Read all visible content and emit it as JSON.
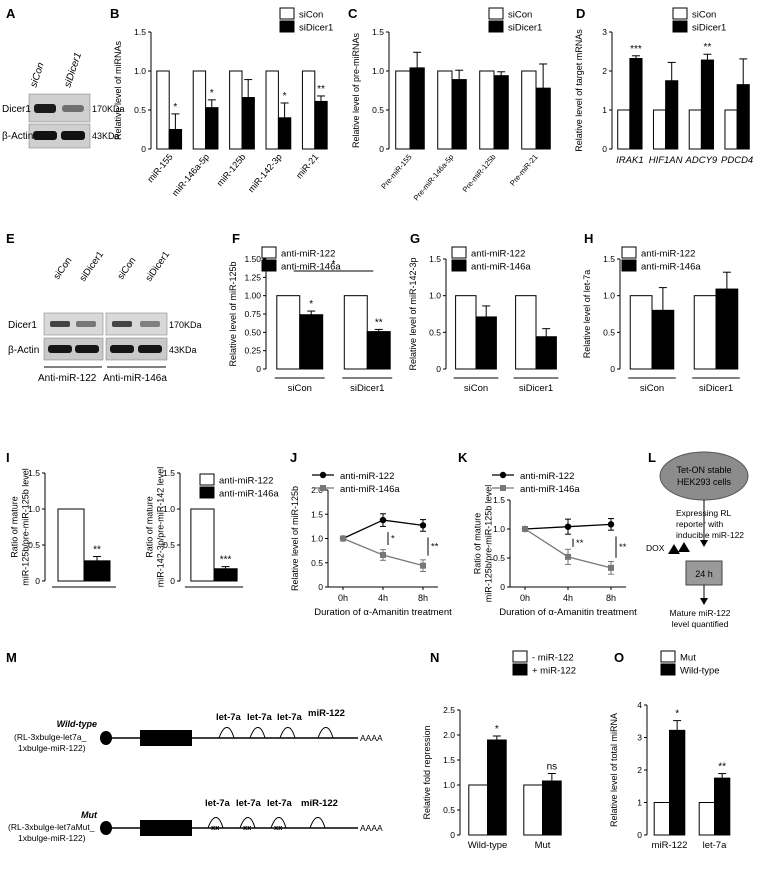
{
  "figure": {
    "panels": {
      "A": {
        "letter": "A",
        "lanes": [
          "siCon",
          "siDicer1"
        ],
        "rows": [
          "Dicer1",
          "β-Actin"
        ],
        "markers": [
          "170KDa",
          "43KDa"
        ]
      },
      "E": {
        "letter": "E",
        "lanes": [
          "siCon",
          "siDicer1",
          "siCon",
          "siDicer1"
        ],
        "rows": [
          "Dicer1",
          "β-Actin"
        ],
        "markers": [
          "170KDa",
          "43KDa"
        ],
        "groups": [
          "Anti-miR-122",
          "Anti-miR-146a"
        ]
      },
      "L": {
        "letter": "L",
        "cells": "Tet-ON stable",
        "cells_line2": "HEK293 cells",
        "step1": "Expressing RL",
        "step1b": "reporter with",
        "step1c": "inducible miR-122",
        "dox": "DOX",
        "time": "24 h",
        "result": "Mature miR-122",
        "result2": "level quantified"
      },
      "M": {
        "letter": "M",
        "wt_name": "Wild-type",
        "wt_sub1": "(RL-3xbulge-let7a_",
        "wt_sub2": "1xbulge-miR-122)",
        "mut_name": "Mut",
        "mut_sub1": "(RL-3xbulge-let7aMut_",
        "mut_sub2": "1xbulge-miR-122)",
        "site_let7a": "let-7a",
        "site_mir122": "miR-122",
        "mut_mark": "xx",
        "polya": "AAAA"
      }
    }
  },
  "chart_data": [
    {
      "panel": "B",
      "type": "bar",
      "ylabel": "Relative level of miRNAs",
      "ylim": [
        0,
        1.5
      ],
      "yticks": [
        "0",
        "0.5",
        "1.0",
        "1.5"
      ],
      "categories": [
        "miR-155",
        "miR-146a-5p",
        "miR-125b",
        "miR-142-3p",
        "miR-21"
      ],
      "series": [
        {
          "name": "siCon",
          "values": [
            1,
            1,
            1,
            1,
            1
          ],
          "errors": [
            0,
            0,
            0,
            0,
            0
          ]
        },
        {
          "name": "siDicer1",
          "values": [
            0.25,
            0.53,
            0.66,
            0.4,
            0.61
          ],
          "errors": [
            0.2,
            0.1,
            0.23,
            0.19,
            0.07
          ]
        }
      ],
      "annotations": [
        "*",
        "*",
        "",
        "*",
        "**"
      ],
      "legend": "top"
    },
    {
      "panel": "C",
      "type": "bar",
      "ylabel": "Relative level of pre-miRNAs",
      "ylim": [
        0,
        1.5
      ],
      "yticks": [
        "0",
        "0.5",
        "1.0",
        "1.5"
      ],
      "categories": [
        "Pre-miR-155",
        "Pre-miR-146a-5p",
        "Pre-miR-125b",
        "Pre-miR-21"
      ],
      "series": [
        {
          "name": "siCon",
          "values": [
            1,
            1,
            1,
            1
          ],
          "errors": [
            0,
            0,
            0,
            0
          ]
        },
        {
          "name": "siDicer1",
          "values": [
            1.04,
            0.89,
            0.94,
            0.78
          ],
          "errors": [
            0.2,
            0.12,
            0.05,
            0.31
          ]
        }
      ],
      "annotations": [
        "",
        "",
        "",
        ""
      ],
      "legend": "top"
    },
    {
      "panel": "D",
      "type": "bar",
      "ylabel": "Relative level of target mRNAs",
      "ylim": [
        0,
        3
      ],
      "yticks": [
        "0",
        "1",
        "2",
        "3"
      ],
      "categories": [
        "IRAK1",
        "HIF1AN",
        "ADCY9",
        "PDCD4"
      ],
      "series": [
        {
          "name": "siCon",
          "values": [
            1,
            1,
            1,
            1
          ],
          "errors": [
            0,
            0,
            0,
            0
          ]
        },
        {
          "name": "siDicer1",
          "values": [
            2.32,
            1.75,
            2.28,
            1.65
          ],
          "errors": [
            0.07,
            0.47,
            0.15,
            0.66
          ]
        }
      ],
      "annotations": [
        "***",
        "",
        "**",
        ""
      ],
      "legend": "top"
    },
    {
      "panel": "F",
      "type": "bar",
      "ylabel": "Relative level of miR-125b",
      "ylim": [
        0,
        1.5
      ],
      "yticks": [
        "0",
        "0.25",
        "0.50",
        "0.75",
        "1.00",
        "1.25",
        "1.50"
      ],
      "categories": [
        "siCon",
        "siDicer1"
      ],
      "series": [
        {
          "name": "anti-miR-122",
          "values": [
            1,
            1
          ],
          "errors": [
            0,
            0
          ]
        },
        {
          "name": "anti-miR-146a",
          "values": [
            0.74,
            0.51
          ],
          "errors": [
            0.05,
            0.03
          ]
        }
      ],
      "annotations": [
        "*",
        "**"
      ],
      "bracket": "*",
      "legend": "top"
    },
    {
      "panel": "G",
      "type": "bar",
      "ylabel": "Relative level of miR-142-3p",
      "ylim": [
        0,
        1.5
      ],
      "yticks": [
        "0",
        "0.5",
        "1.0",
        "1.5"
      ],
      "categories": [
        "siCon",
        "siDicer1"
      ],
      "series": [
        {
          "name": "anti-miR-122",
          "values": [
            1,
            1
          ],
          "errors": [
            0,
            0
          ]
        },
        {
          "name": "anti-miR-146a",
          "values": [
            0.71,
            0.44
          ],
          "errors": [
            0.15,
            0.11
          ]
        }
      ],
      "annotations": [
        "",
        ""
      ],
      "legend": "top"
    },
    {
      "panel": "H",
      "type": "bar",
      "ylabel": "Relative level of let-7a",
      "ylim": [
        0,
        1.5
      ],
      "yticks": [
        "0",
        "0.5",
        "1.0",
        "1.5"
      ],
      "categories": [
        "siCon",
        "siDicer1"
      ],
      "series": [
        {
          "name": "anti-miR-122",
          "values": [
            1,
            1
          ],
          "errors": [
            0,
            0
          ]
        },
        {
          "name": "anti-miR-146a",
          "values": [
            0.8,
            1.09
          ],
          "errors": [
            0.31,
            0.23
          ]
        }
      ],
      "annotations": [
        "",
        ""
      ],
      "legend": "top"
    },
    {
      "panel": "I1",
      "type": "bar",
      "ylabel": "Ratio of mature\nmiR-125b/pre-miR-125b level",
      "ylim": [
        0,
        1.5
      ],
      "yticks": [
        "0",
        "0.5",
        "1.0",
        "1.5"
      ],
      "categories": [
        ""
      ],
      "series": [
        {
          "name": "anti-miR-122",
          "values": [
            1
          ],
          "errors": [
            0
          ]
        },
        {
          "name": "anti-miR-146a",
          "values": [
            0.28
          ],
          "errors": [
            0.06
          ]
        }
      ],
      "annotations": [
        "**"
      ]
    },
    {
      "panel": "I2",
      "type": "bar",
      "ylabel": "Ratio of mature\nmiR-142-3p/pre-miR-142 level",
      "ylim": [
        0,
        1.5
      ],
      "yticks": [
        "0",
        "0.5",
        "1.0",
        "1.5"
      ],
      "categories": [
        ""
      ],
      "series": [
        {
          "name": "anti-miR-122",
          "values": [
            1
          ],
          "errors": [
            0
          ]
        },
        {
          "name": "anti-miR-146a",
          "values": [
            0.17
          ],
          "errors": [
            0.03
          ]
        }
      ],
      "annotations": [
        "***"
      ],
      "legend": "right"
    },
    {
      "panel": "J",
      "type": "line",
      "ylabel": "Relative level of miR-125b",
      "xlabel": "Duration of α-Amanitin treatment",
      "x": [
        "0h",
        "4h",
        "8h"
      ],
      "ylim": [
        0,
        2
      ],
      "yticks": [
        "0",
        "0.5",
        "1.0",
        "1.5",
        "2.0"
      ],
      "series": [
        {
          "name": "anti-miR-122",
          "values": [
            1.0,
            1.38,
            1.27
          ],
          "errors": [
            0,
            0.13,
            0.12
          ]
        },
        {
          "name": "anti-miR-146a",
          "values": [
            1.0,
            0.66,
            0.44
          ],
          "errors": [
            0,
            0.11,
            0.12
          ]
        }
      ],
      "annotations": [
        "*",
        "**"
      ],
      "legend": "top"
    },
    {
      "panel": "K",
      "type": "line",
      "ylabel": "Ratio of mature\nmiR-125b/pre-miR-125b level",
      "xlabel": "Duration of α-Amanitin treatment",
      "x": [
        "0h",
        "4h",
        "8h"
      ],
      "ylim": [
        0,
        1.5
      ],
      "yticks": [
        "0",
        "0.5",
        "1.0",
        "1.5"
      ],
      "series": [
        {
          "name": "anti-miR-122",
          "values": [
            1.0,
            1.04,
            1.08
          ],
          "errors": [
            0,
            0.13,
            0.1
          ]
        },
        {
          "name": "anti-miR-146a",
          "values": [
            1.0,
            0.52,
            0.33
          ],
          "errors": [
            0,
            0.13,
            0.11
          ]
        }
      ],
      "annotations": [
        "**",
        "**"
      ],
      "legend": "top"
    },
    {
      "panel": "N",
      "type": "bar",
      "ylabel": "Relative fold repression",
      "ylim": [
        0,
        2.5
      ],
      "yticks": [
        "0",
        "0.5",
        "1.0",
        "1.5",
        "2.0",
        "2.5"
      ],
      "categories": [
        "Wild-type",
        "Mut"
      ],
      "series": [
        {
          "name": "- miR-122",
          "values": [
            1,
            1
          ],
          "errors": [
            0,
            0
          ]
        },
        {
          "name": "+ miR-122",
          "values": [
            1.9,
            1.08
          ],
          "errors": [
            0.08,
            0.15
          ]
        }
      ],
      "annotations": [
        "*",
        "ns"
      ],
      "legend": "top"
    },
    {
      "panel": "O",
      "type": "bar",
      "ylabel": "Relative level of  total miRNA",
      "ylim": [
        0,
        4
      ],
      "yticks": [
        "0",
        "1",
        "2",
        "3",
        "4"
      ],
      "categories": [
        "miR-122",
        "let-7a"
      ],
      "series": [
        {
          "name": "Mut",
          "values": [
            1,
            1
          ],
          "errors": [
            0,
            0
          ]
        },
        {
          "name": "Wild-type",
          "values": [
            3.22,
            1.75
          ],
          "errors": [
            0.3,
            0.14
          ]
        }
      ],
      "annotations": [
        "*",
        "**"
      ],
      "legend": "top"
    }
  ]
}
